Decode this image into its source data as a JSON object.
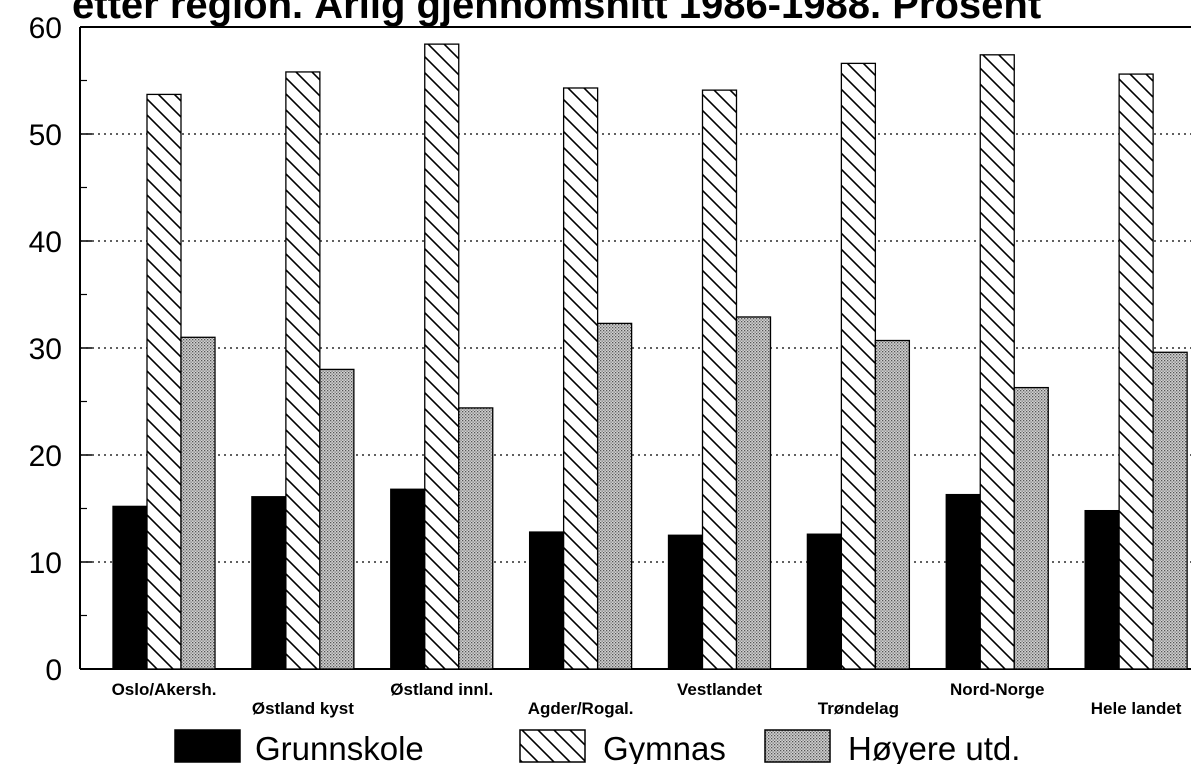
{
  "chart_data": {
    "type": "bar",
    "title": "etter region. Årlig gjennomsnitt 1986-1988. Prosent",
    "xlabel": "",
    "ylabel": "",
    "ylim": [
      0,
      60
    ],
    "yticks": [
      0,
      10,
      20,
      30,
      40,
      50,
      60
    ],
    "grid": "horizontal dotted",
    "legend_position": "bottom",
    "categories": [
      "Oslo/Akersh.",
      "Østland kyst",
      "Østland innl.",
      "Agder/Rogal.",
      "Vestlandet",
      "Trøndelag",
      "Nord-Norge",
      "Hele landet"
    ],
    "series": [
      {
        "name": "Grunnskole",
        "pattern": "solid-black",
        "values": [
          15.2,
          16.1,
          16.8,
          12.8,
          12.5,
          12.6,
          16.3,
          14.8
        ]
      },
      {
        "name": "Gymnas",
        "pattern": "diagonal-hatch",
        "values": [
          53.7,
          55.8,
          58.4,
          54.3,
          54.1,
          56.6,
          57.4,
          55.6
        ]
      },
      {
        "name": "Høyere utd.",
        "pattern": "dotted-gray",
        "values": [
          31.0,
          28.0,
          24.4,
          32.3,
          32.9,
          30.7,
          26.3,
          29.6
        ]
      }
    ]
  }
}
